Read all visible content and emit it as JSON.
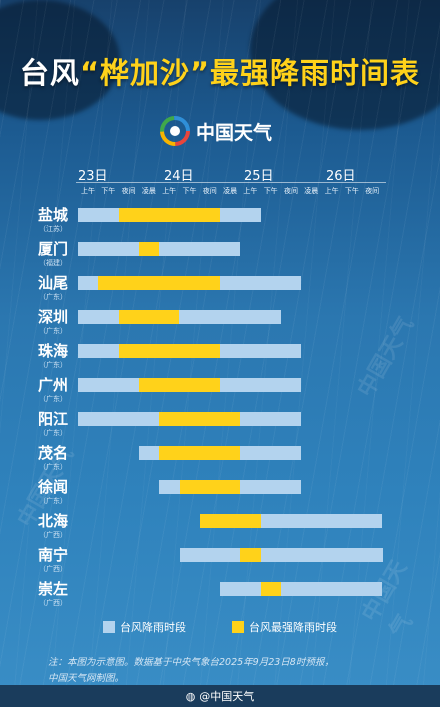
{
  "title": {
    "part1": "台风",
    "part2": "“桦加沙”最强降雨时间表",
    "part3": ""
  },
  "logo_text": "中国天气",
  "watermark": "中国天气",
  "legend": {
    "rain": "台风降雨时段",
    "strong": "台风最强降雨时段"
  },
  "note": {
    "line1": "注：本图为示意图。数据基于中央气象台2025年9月23日8时预报，",
    "line2": "中国天气网制图。"
  },
  "footer": "@中国天气",
  "colors": {
    "rain": "#b3d3ee",
    "strong": "#ffd21a",
    "title_accent": "#ffd21a"
  },
  "chart_data": {
    "type": "gantt",
    "days": [
      "23日",
      "24日",
      "25日",
      "26日"
    ],
    "slots": [
      {
        "day": 0,
        "label": "上午"
      },
      {
        "day": 0,
        "label": "下午"
      },
      {
        "day": 0,
        "label": "夜间"
      },
      {
        "day": 1,
        "label": "凌晨"
      },
      {
        "day": 1,
        "label": "上午"
      },
      {
        "day": 1,
        "label": "下午"
      },
      {
        "day": 1,
        "label": "夜间"
      },
      {
        "day": 2,
        "label": "凌晨"
      },
      {
        "day": 2,
        "label": "上午"
      },
      {
        "day": 2,
        "label": "下午"
      },
      {
        "day": 2,
        "label": "夜间"
      },
      {
        "day": 3,
        "label": "凌晨"
      },
      {
        "day": 3,
        "label": "上午"
      },
      {
        "day": 3,
        "label": "下午"
      },
      {
        "day": 3,
        "label": "夜间"
      }
    ],
    "cities": [
      {
        "name": "盐城",
        "province": "（江苏）",
        "rain": [
          0,
          9
        ],
        "strong": [
          2,
          7
        ]
      },
      {
        "name": "厦门",
        "province": "（福建）",
        "rain": [
          0,
          8
        ],
        "strong": [
          3,
          4
        ]
      },
      {
        "name": "汕尾",
        "province": "（广东）",
        "rain": [
          0,
          11
        ],
        "strong": [
          1,
          7
        ]
      },
      {
        "name": "深圳",
        "province": "（广东）",
        "rain": [
          0,
          10
        ],
        "strong": [
          2,
          5
        ]
      },
      {
        "name": "珠海",
        "province": "（广东）",
        "rain": [
          0,
          11
        ],
        "strong": [
          2,
          7
        ]
      },
      {
        "name": "广州",
        "province": "（广东）",
        "rain": [
          0,
          11
        ],
        "strong": [
          3,
          7
        ]
      },
      {
        "name": "阳江",
        "province": "（广东）",
        "rain": [
          0,
          11
        ],
        "strong": [
          4,
          8
        ]
      },
      {
        "name": "茂名",
        "province": "（广东）",
        "rain": [
          3,
          11
        ],
        "strong": [
          4,
          8
        ]
      },
      {
        "name": "徐闻",
        "province": "（广东）",
        "rain": [
          4,
          11
        ],
        "strong": [
          5,
          8
        ]
      },
      {
        "name": "北海",
        "province": "（广西）",
        "rain": [
          6,
          15
        ],
        "strong": [
          6,
          9
        ]
      },
      {
        "name": "南宁",
        "province": "（广西）",
        "rain": [
          5,
          15
        ],
        "strong": [
          8,
          9
        ]
      },
      {
        "name": "崇左",
        "province": "（广西）",
        "rain": [
          7,
          15
        ],
        "strong": [
          9,
          10
        ]
      }
    ]
  }
}
